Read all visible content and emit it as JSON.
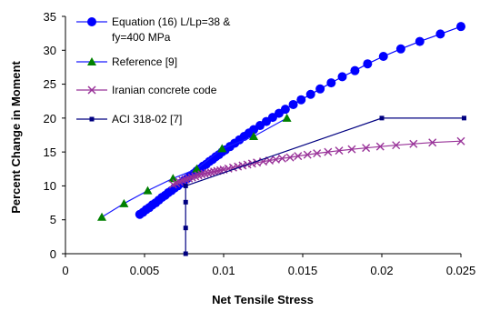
{
  "chart_data": {
    "type": "line",
    "xlabel": "Net Tensile Stress",
    "ylabel": "Percent Change in Moment",
    "xlim": [
      0,
      0.025
    ],
    "ylim": [
      0,
      35
    ],
    "x_ticks": [
      "0",
      "0.005",
      "0.01",
      "0.015",
      "0.02",
      "0.025"
    ],
    "y_ticks": [
      "0",
      "5",
      "10",
      "15",
      "20",
      "25",
      "30",
      "35"
    ],
    "grid": false,
    "legend_position": "top-left",
    "series": [
      {
        "name_lines": [
          "Equation (16) L/Lp=38 &",
          "fy=400 MPa"
        ],
        "color": "#0000ff",
        "marker": "circle",
        "x": [
          0.0047,
          0.0049,
          0.0051,
          0.0053,
          0.0055,
          0.0057,
          0.0059,
          0.0061,
          0.0063,
          0.0065,
          0.0067,
          0.0069,
          0.0071,
          0.0073,
          0.0075,
          0.0077,
          0.0079,
          0.0081,
          0.0083,
          0.0085,
          0.0087,
          0.0089,
          0.0091,
          0.0093,
          0.0095,
          0.0097,
          0.0099,
          0.0101,
          0.0104,
          0.0107,
          0.011,
          0.0113,
          0.0116,
          0.0119,
          0.0123,
          0.0127,
          0.0131,
          0.0135,
          0.0139,
          0.0144,
          0.0149,
          0.0155,
          0.0161,
          0.0168,
          0.0175,
          0.0183,
          0.0191,
          0.0201,
          0.0212,
          0.0224,
          0.0237,
          0.025
        ],
        "y": [
          5.8,
          6.1,
          6.5,
          6.8,
          7.2,
          7.5,
          7.9,
          8.3,
          8.6,
          9.0,
          9.3,
          9.7,
          10.0,
          10.4,
          10.8,
          11.1,
          11.5,
          11.8,
          12.2,
          12.5,
          12.9,
          13.2,
          13.6,
          13.9,
          14.3,
          14.6,
          15.0,
          15.3,
          15.8,
          16.3,
          16.8,
          17.3,
          17.8,
          18.3,
          18.9,
          19.5,
          20.1,
          20.7,
          21.3,
          22.0,
          22.7,
          23.5,
          24.3,
          25.2,
          26.1,
          27.0,
          28.0,
          29.1,
          30.2,
          31.3,
          32.4,
          33.5
        ]
      },
      {
        "name_lines": [
          "Reference  [9]"
        ],
        "color": "#008000",
        "line_color": "#1a1aff",
        "marker": "triangle",
        "x": [
          0.0023,
          0.0037,
          0.0052,
          0.0068,
          0.0083,
          0.0099,
          0.0119,
          0.014
        ],
        "y": [
          5.4,
          7.4,
          9.3,
          11.1,
          12.5,
          15.5,
          17.3,
          20.0
        ]
      },
      {
        "name_lines": [
          "Iranian concrete code"
        ],
        "color": "#993399",
        "marker": "x",
        "x": [
          0.0068,
          0.007,
          0.0072,
          0.0074,
          0.0076,
          0.0078,
          0.008,
          0.0082,
          0.0084,
          0.0086,
          0.0088,
          0.009,
          0.0092,
          0.0094,
          0.0096,
          0.0098,
          0.01,
          0.0103,
          0.0106,
          0.0109,
          0.0112,
          0.0115,
          0.0118,
          0.0121,
          0.0125,
          0.0129,
          0.0133,
          0.0137,
          0.0142,
          0.0147,
          0.0153,
          0.0159,
          0.0166,
          0.0173,
          0.0181,
          0.019,
          0.0199,
          0.0209,
          0.022,
          0.0232,
          0.025
        ],
        "y": [
          10.2,
          10.4,
          10.6,
          10.8,
          10.95,
          11.1,
          11.25,
          11.4,
          11.55,
          11.7,
          11.8,
          11.9,
          12.0,
          12.1,
          12.2,
          12.3,
          12.4,
          12.55,
          12.7,
          12.85,
          13.0,
          13.15,
          13.3,
          13.45,
          13.6,
          13.75,
          13.9,
          14.05,
          14.2,
          14.4,
          14.6,
          14.8,
          15.0,
          15.2,
          15.4,
          15.6,
          15.8,
          16.0,
          16.2,
          16.4,
          16.6
        ]
      },
      {
        "name_lines": [
          "ACI 318-02  [7]"
        ],
        "color": "#000080",
        "marker": "square",
        "x": [
          0.0076,
          0.0076,
          0.0076,
          0.0076,
          0.02,
          0.0252
        ],
        "y": [
          0,
          3.8,
          7.6,
          10.0,
          20.0,
          20.0
        ]
      }
    ]
  }
}
